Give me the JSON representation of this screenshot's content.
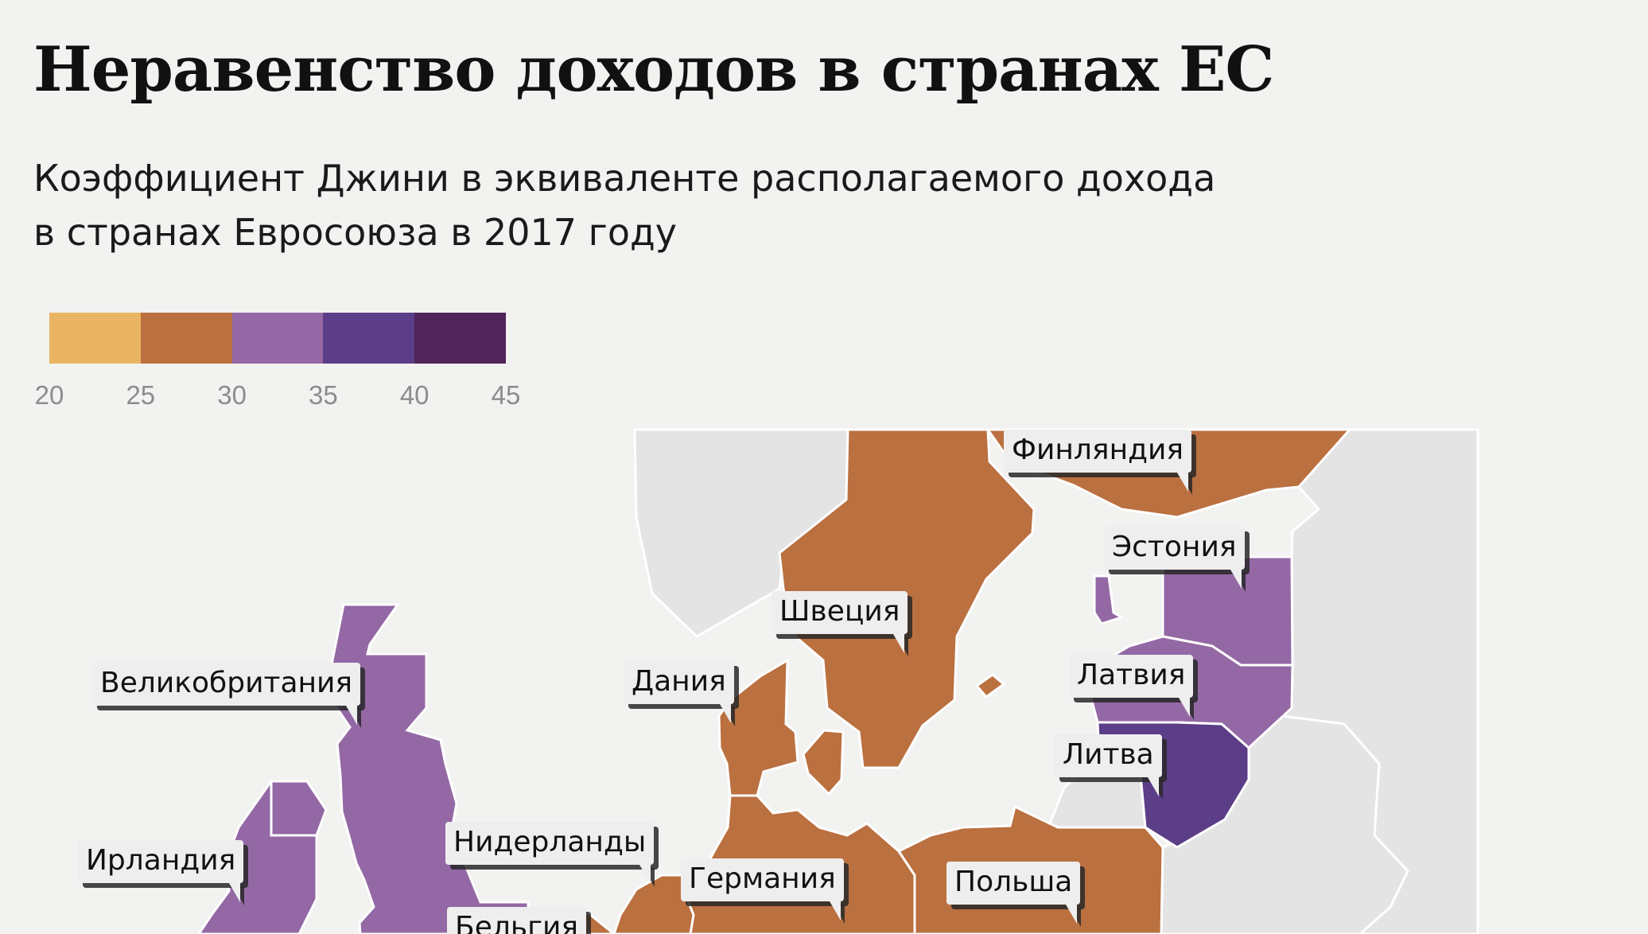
{
  "title": "Неравенство доходов в странах ЕС",
  "subtitle": {
    "line1": "Коэффициент Джини в эквиваленте располагаемого дохода",
    "line2": "в странах Евросоюза в 2017 году"
  },
  "legend": {
    "colors": [
      "#e9b562",
      "#bb7040",
      "#9468a5",
      "#5c3d87",
      "#51245a"
    ],
    "ticks": [
      "20",
      "25",
      "30",
      "35",
      "40",
      "45"
    ]
  },
  "colors": {
    "background": "#f2f2f0",
    "non_eu": "#e4e4e4",
    "border": "#ffffff"
  },
  "countries": [
    {
      "name": "Финляндия",
      "range": "25–30"
    },
    {
      "name": "Эстония",
      "range": "30–35"
    },
    {
      "name": "Швеция",
      "range": "25–30"
    },
    {
      "name": "Латвия",
      "range": "30–35"
    },
    {
      "name": "Дания",
      "range": "25–30"
    },
    {
      "name": "Великобритания",
      "range": "30–35"
    },
    {
      "name": "Литва",
      "range": "35–40"
    },
    {
      "name": "Ирландия",
      "range": "30–35"
    },
    {
      "name": "Нидерланды",
      "range": "25–30"
    },
    {
      "name": "Германия",
      "range": "25–30"
    },
    {
      "name": "Польша",
      "range": "25–30"
    },
    {
      "name": "Бельгия",
      "range": "25–30"
    }
  ]
}
